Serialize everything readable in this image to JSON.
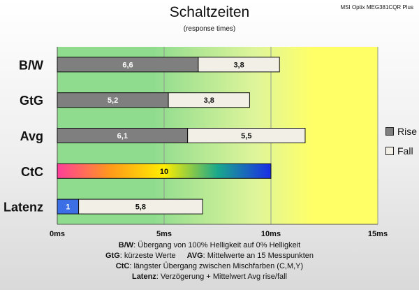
{
  "header": {
    "title": "Schaltzeiten",
    "subtitle": "(response times)",
    "monitor": "MSI Optix MEG381CQR Plus"
  },
  "legend": [
    {
      "label": "Rise",
      "color": "#7f7f7f"
    },
    {
      "label": "Fall",
      "color": "#f2f0e6"
    }
  ],
  "footnotes": {
    "bw_key": "B/W",
    "bw_text": ":  Übergang von 100% Helligkeit auf 0% Helligkeit",
    "gtg_key": "GtG",
    "gtg_text": ": kürzeste  Werte",
    "avg_key": "AVG",
    "avg_text": ": Mittelwerte  an 15 Messpunkten",
    "ctc_key": "CtC",
    "ctc_text": ": längster Übergang  zwischen Mischfarben (C,M,Y)",
    "lat_key": "Latenz",
    "lat_text": ": Verzögerung  + Mittelwert Avg rise/fall"
  },
  "chart_data": {
    "type": "bar",
    "orientation": "horizontal",
    "stacked": true,
    "categories": [
      "B/W",
      "GtG",
      "Avg",
      "CtC",
      "Latenz"
    ],
    "series": [
      {
        "name": "Rise",
        "values": [
          6.6,
          5.2,
          6.1,
          null,
          null
        ],
        "labels": [
          "6,6",
          "5,2",
          "6,1",
          "",
          ""
        ]
      },
      {
        "name": "Fall",
        "values": [
          3.8,
          3.8,
          5.5,
          null,
          5.8
        ],
        "labels": [
          "3,8",
          "3,8",
          "5,5",
          "",
          "5,8"
        ]
      }
    ],
    "ctc": {
      "category": "CtC",
      "value": 10,
      "label": "10"
    },
    "latency": {
      "category": "Latenz",
      "delay": 1,
      "delay_label": "1",
      "delay_color": "#3c6ee6"
    },
    "x_ticks": [
      0,
      5,
      10,
      15
    ],
    "x_tick_labels": [
      "0ms",
      "5ms",
      "10ms",
      "15ms"
    ],
    "xlim": [
      0,
      15
    ],
    "grid": true,
    "legend_position": "right",
    "colors": {
      "rise": "#7f7f7f",
      "fall": "#f2f0e6",
      "zone_good": "#8fdc8f",
      "zone_mid": "#dff59a",
      "zone_bad": "#ffff66",
      "ctc_gradient": [
        "#ff3d9a",
        "#ff9a1a",
        "#ffee00",
        "#1aa88c",
        "#1a2ee6"
      ]
    }
  }
}
